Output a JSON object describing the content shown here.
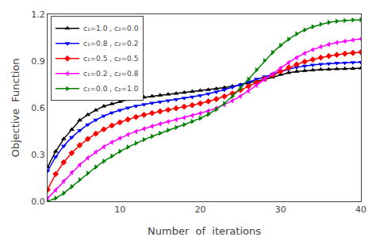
{
  "chart_data": {
    "type": "line",
    "x_label": "Number  of  iterations",
    "y_label": "Objective  Function",
    "x": [
      1,
      2,
      3,
      4,
      5,
      6,
      7,
      8,
      9,
      10,
      11,
      12,
      13,
      14,
      15,
      16,
      17,
      18,
      19,
      20,
      21,
      22,
      23,
      24,
      25,
      26,
      27,
      28,
      29,
      30,
      31,
      32,
      33,
      34,
      35,
      36,
      37,
      38,
      39,
      40
    ],
    "xlim": [
      1,
      40
    ],
    "xticks": [
      10,
      20,
      30,
      40
    ],
    "ylim": [
      0.0,
      1.2
    ],
    "yticks": [
      {
        "value": 0,
        "label": "0.0"
      },
      0.3,
      0.6,
      0.9,
      1.2
    ],
    "grid": false,
    "legend": "upper left",
    "series": [
      {
        "name": "c₁=1.0 , c₂=0.0",
        "color": "black",
        "marker": "triangle-up",
        "values": [
          0.22,
          0.32,
          0.4,
          0.46,
          0.52,
          0.555,
          0.585,
          0.61,
          0.625,
          0.64,
          0.652,
          0.66,
          0.668,
          0.674,
          0.68,
          0.686,
          0.692,
          0.698,
          0.704,
          0.71,
          0.716,
          0.722,
          0.73,
          0.738,
          0.748,
          0.758,
          0.77,
          0.782,
          0.797,
          0.813,
          0.825,
          0.832,
          0.838,
          0.842,
          0.845,
          0.847,
          0.849,
          0.851,
          0.852,
          0.854
        ]
      },
      {
        "name": "c₁=0.8 , c₂=0.2",
        "color": "blue",
        "marker": "triangle-down",
        "values": [
          0.195,
          0.285,
          0.355,
          0.41,
          0.455,
          0.492,
          0.522,
          0.548,
          0.568,
          0.585,
          0.6,
          0.612,
          0.622,
          0.63,
          0.638,
          0.646,
          0.654,
          0.662,
          0.67,
          0.679,
          0.69,
          0.702,
          0.716,
          0.732,
          0.748,
          0.766,
          0.784,
          0.8,
          0.816,
          0.832,
          0.848,
          0.86,
          0.868,
          0.875,
          0.88,
          0.884,
          0.887,
          0.889,
          0.891,
          0.893
        ]
      },
      {
        "name": "c₁=0.5 , c₂=0.5",
        "color": "red",
        "marker": "diamond",
        "values": [
          0.075,
          0.175,
          0.25,
          0.31,
          0.36,
          0.4,
          0.434,
          0.462,
          0.486,
          0.507,
          0.525,
          0.541,
          0.555,
          0.566,
          0.577,
          0.587,
          0.597,
          0.607,
          0.617,
          0.628,
          0.641,
          0.656,
          0.673,
          0.692,
          0.714,
          0.738,
          0.762,
          0.786,
          0.81,
          0.834,
          0.858,
          0.878,
          0.896,
          0.91,
          0.922,
          0.932,
          0.94,
          0.947,
          0.952,
          0.957
        ]
      },
      {
        "name": "c₁=0.2 , c₂=0.8",
        "color": "magenta",
        "marker": "triangle-left",
        "values": [
          0.018,
          0.072,
          0.13,
          0.185,
          0.234,
          0.278,
          0.316,
          0.35,
          0.379,
          0.405,
          0.428,
          0.448,
          0.466,
          0.482,
          0.497,
          0.511,
          0.524,
          0.537,
          0.55,
          0.564,
          0.58,
          0.598,
          0.62,
          0.645,
          0.674,
          0.708,
          0.744,
          0.781,
          0.818,
          0.855,
          0.89,
          0.922,
          0.95,
          0.973,
          0.992,
          1.007,
          1.018,
          1.027,
          1.035,
          1.042
        ]
      },
      {
        "name": "c₁=0.0 , c₂=1.0",
        "color": "green",
        "marker": "triangle-right",
        "values": [
          0.0,
          0.02,
          0.052,
          0.094,
          0.138,
          0.18,
          0.22,
          0.257,
          0.29,
          0.32,
          0.348,
          0.373,
          0.396,
          0.417,
          0.437,
          0.456,
          0.474,
          0.492,
          0.512,
          0.533,
          0.558,
          0.59,
          0.628,
          0.674,
          0.726,
          0.783,
          0.843,
          0.902,
          0.955,
          1.0,
          1.04,
          1.074,
          1.1,
          1.12,
          1.136,
          1.148,
          1.155,
          1.16,
          1.163,
          1.165
        ]
      }
    ]
  }
}
